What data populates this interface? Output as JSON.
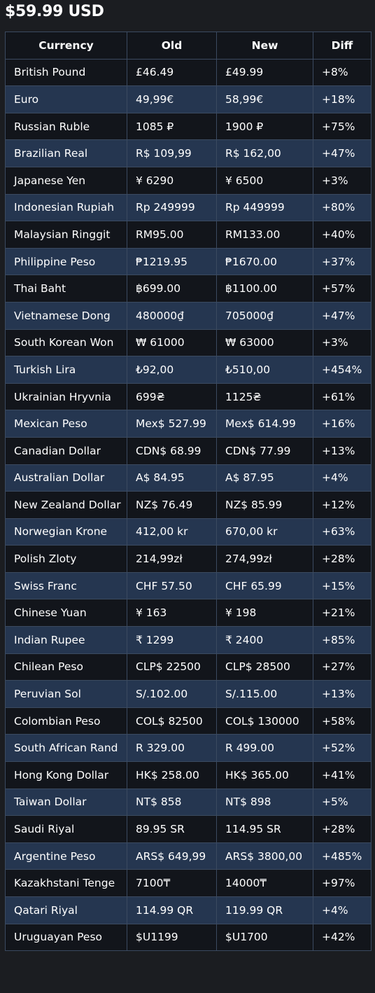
{
  "title": "$59.99 USD",
  "columns": [
    "Currency",
    "Old",
    "New",
    "Diff"
  ],
  "rows": [
    {
      "currency": "British Pound",
      "old": "£46.49",
      "new": "£49.99",
      "diff": "+8%"
    },
    {
      "currency": "Euro",
      "old": "49,99€",
      "new": "58,99€",
      "diff": "+18%"
    },
    {
      "currency": "Russian Ruble",
      "old": "1085 ₽",
      "new": "1900 ₽",
      "diff": "+75%"
    },
    {
      "currency": "Brazilian Real",
      "old": "R$ 109,99",
      "new": "R$ 162,00",
      "diff": "+47%"
    },
    {
      "currency": "Japanese Yen",
      "old": "¥ 6290",
      "new": "¥ 6500",
      "diff": "+3%"
    },
    {
      "currency": "Indonesian Rupiah",
      "old": "Rp 249999",
      "new": "Rp 449999",
      "diff": "+80%"
    },
    {
      "currency": "Malaysian Ringgit",
      "old": "RM95.00",
      "new": "RM133.00",
      "diff": "+40%"
    },
    {
      "currency": "Philippine Peso",
      "old": "₱1219.95",
      "new": "₱1670.00",
      "diff": "+37%"
    },
    {
      "currency": "Thai Baht",
      "old": "฿699.00",
      "new": "฿1100.00",
      "diff": "+57%"
    },
    {
      "currency": "Vietnamese Dong",
      "old": "480000₫",
      "new": "705000₫",
      "diff": "+47%"
    },
    {
      "currency": "South Korean Won",
      "old": "₩ 61000",
      "new": "₩ 63000",
      "diff": "+3%"
    },
    {
      "currency": "Turkish Lira",
      "old": "₺92,00",
      "new": "₺510,00",
      "diff": "+454%"
    },
    {
      "currency": "Ukrainian Hryvnia",
      "old": "699₴",
      "new": "1125₴",
      "diff": "+61%"
    },
    {
      "currency": "Mexican Peso",
      "old": "Mex$ 527.99",
      "new": "Mex$ 614.99",
      "diff": "+16%"
    },
    {
      "currency": "Canadian Dollar",
      "old": "CDN$ 68.99",
      "new": "CDN$ 77.99",
      "diff": "+13%"
    },
    {
      "currency": "Australian Dollar",
      "old": "A$ 84.95",
      "new": "A$ 87.95",
      "diff": "+4%"
    },
    {
      "currency": "New Zealand Dollar",
      "old": "NZ$ 76.49",
      "new": "NZ$ 85.99",
      "diff": "+12%"
    },
    {
      "currency": "Norwegian Krone",
      "old": "412,00 kr",
      "new": "670,00 kr",
      "diff": "+63%"
    },
    {
      "currency": "Polish Zloty",
      "old": "214,99zł",
      "new": "274,99zł",
      "diff": "+28%"
    },
    {
      "currency": "Swiss Franc",
      "old": "CHF 57.50",
      "new": "CHF 65.99",
      "diff": "+15%"
    },
    {
      "currency": "Chinese Yuan",
      "old": "¥ 163",
      "new": "¥ 198",
      "diff": "+21%"
    },
    {
      "currency": "Indian Rupee",
      "old": "₹ 1299",
      "new": "₹ 2400",
      "diff": "+85%"
    },
    {
      "currency": "Chilean Peso",
      "old": "CLP$ 22500",
      "new": "CLP$ 28500",
      "diff": "+27%"
    },
    {
      "currency": "Peruvian Sol",
      "old": "S/.102.00",
      "new": "S/.115.00",
      "diff": "+13%"
    },
    {
      "currency": "Colombian Peso",
      "old": "COL$ 82500",
      "new": "COL$ 130000",
      "diff": "+58%"
    },
    {
      "currency": "South African Rand",
      "old": "R 329.00",
      "new": "R 499.00",
      "diff": "+52%"
    },
    {
      "currency": "Hong Kong Dollar",
      "old": "HK$ 258.00",
      "new": "HK$ 365.00",
      "diff": "+41%"
    },
    {
      "currency": "Taiwan Dollar",
      "old": "NT$ 858",
      "new": "NT$ 898",
      "diff": "+5%"
    },
    {
      "currency": "Saudi Riyal",
      "old": "89.95 SR",
      "new": "114.95 SR",
      "diff": "+28%"
    },
    {
      "currency": "Argentine Peso",
      "old": "ARS$ 649,99",
      "new": "ARS$ 3800,00",
      "diff": "+485%"
    },
    {
      "currency": "Kazakhstani Tenge",
      "old": "7100₸",
      "new": "14000₸",
      "diff": "+97%"
    },
    {
      "currency": "Qatari Riyal",
      "old": "114.99 QR",
      "new": "119.99 QR",
      "diff": "+4%"
    },
    {
      "currency": "Uruguayan Peso",
      "old": "$U1199",
      "new": "$U1700",
      "diff": "+42%"
    }
  ]
}
